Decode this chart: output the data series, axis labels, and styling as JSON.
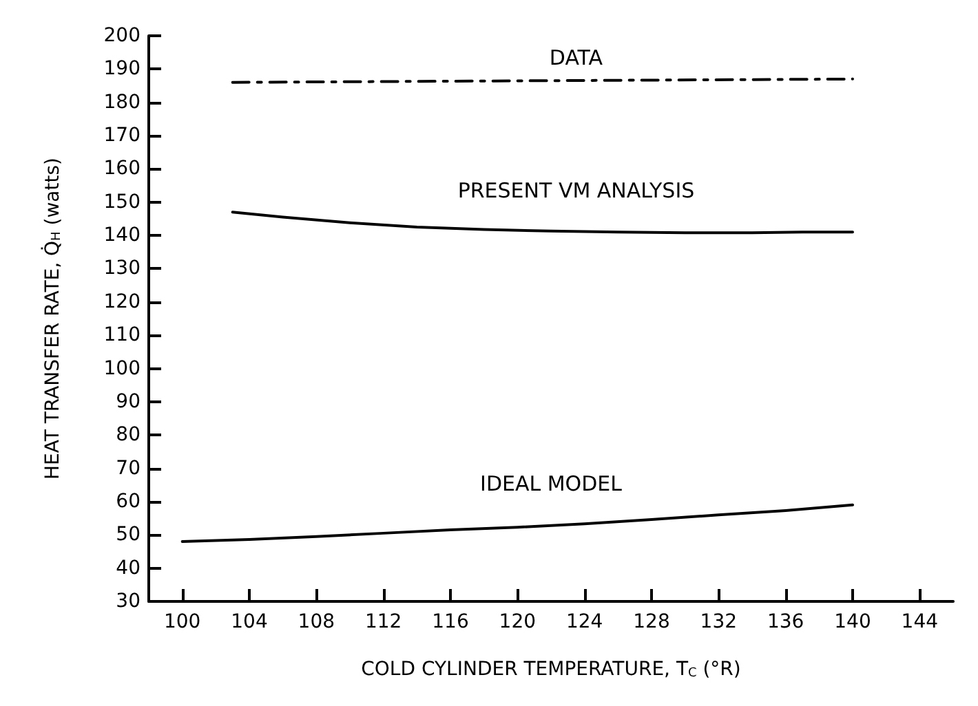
{
  "chart_data": {
    "type": "line",
    "xlabel": "COLD CYLINDER TEMPERATURE, T$_{C}$ (°R)",
    "ylabel": "HEAT TRANSFER RATE, Q̇$_{H}$ (watts)",
    "xlim": [
      98,
      146
    ],
    "ylim": [
      30,
      200
    ],
    "xticks": [
      100,
      104,
      108,
      112,
      116,
      120,
      124,
      128,
      132,
      136,
      140,
      144
    ],
    "yticks": [
      30,
      40,
      50,
      60,
      70,
      80,
      90,
      100,
      110,
      120,
      130,
      140,
      150,
      160,
      170,
      180,
      190,
      200
    ],
    "grid": false,
    "legend": false,
    "marker": "none",
    "series": [
      {
        "name": "DATA",
        "color": "#000000",
        "line_style": "dashed",
        "x": [
          103,
          140
        ],
        "values": [
          186,
          187
        ]
      },
      {
        "name": "PRESENT VM ANALYSIS",
        "color": "#000000",
        "line_style": "solid",
        "x": [
          103,
          106,
          110,
          114,
          118,
          122,
          126,
          130,
          134,
          137,
          140
        ],
        "values": [
          147,
          145.5,
          143.8,
          142.5,
          141.8,
          141.3,
          141,
          140.8,
          140.8,
          141,
          141
        ]
      },
      {
        "name": "IDEAL MODEL",
        "color": "#000000",
        "line_style": "solid",
        "x": [
          100,
          104,
          108,
          112,
          116,
          120,
          124,
          128,
          132,
          136,
          140
        ],
        "values": [
          48,
          48.6,
          49.5,
          50.5,
          51.5,
          52.3,
          53.3,
          54.6,
          56,
          57.3,
          59
        ]
      }
    ]
  }
}
